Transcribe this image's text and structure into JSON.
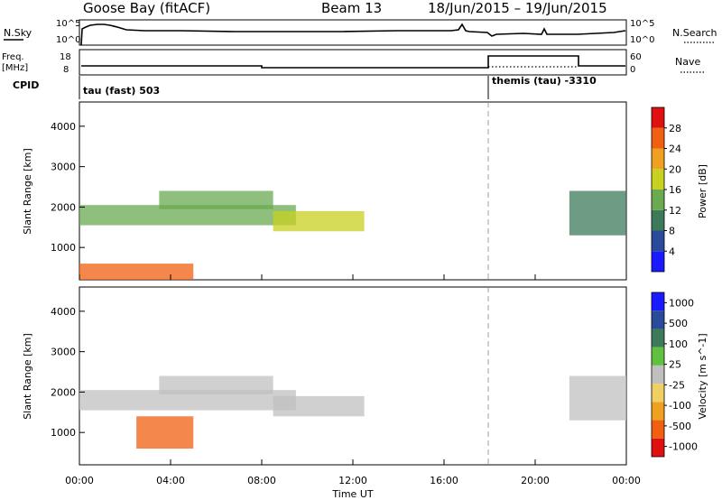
{
  "header": {
    "station": "Goose Bay (fitACF)",
    "beam": "Beam 13",
    "date_range": "18/Jun/2015 – 19/Jun/2015"
  },
  "noise_panel": {
    "left_label": "N.Sky",
    "right_label": "N.Search",
    "left_ticks": [
      "10^5",
      "10^0"
    ],
    "right_ticks": [
      "10^5",
      "10^0"
    ]
  },
  "freq_panel": {
    "left_label_1": "Freq.",
    "left_label_2": "[MHz]",
    "left_ticks": [
      "18",
      "8"
    ],
    "right_label": "Nave",
    "right_ticks": [
      "60",
      "0"
    ]
  },
  "cpid_panel": {
    "label": "CPID",
    "mode_1": "tau (fast) 503",
    "mode_2": "themis (tau) -3310"
  },
  "colors": {
    "power_scale": [
      "#1a1aff",
      "#2a4a9a",
      "#3d7a5a",
      "#6aaa50",
      "#c8d020",
      "#f0a020",
      "#f06010",
      "#e01010"
    ],
    "velocity_scale": [
      "#e01010",
      "#f06010",
      "#f0a020",
      "#f0d060",
      "#c0c0c0",
      "#60c040",
      "#3d7a5a",
      "#2a4a9a",
      "#1a1aff"
    ],
    "ground_scatter": "#c0c0c0"
  },
  "chart_data": [
    {
      "type": "heatmap",
      "title": "",
      "ylabel": "Slant Range [km]",
      "xlabel": "",
      "y_ticks": [
        "1000",
        "2000",
        "3000",
        "4000"
      ],
      "ylim": [
        200,
        4600
      ],
      "xlim": [
        "00:00",
        "24:00"
      ],
      "colorbar": {
        "label": "Power [dB]",
        "ticks": [
          "4",
          "8",
          "12",
          "16",
          "20",
          "24",
          "28"
        ],
        "range": [
          0,
          30
        ]
      },
      "features": [
        {
          "from_h": 0,
          "to_h": 9.5,
          "range_km": [
            1550,
            2050
          ],
          "value_db": 14
        },
        {
          "from_h": 3.5,
          "to_h": 8.5,
          "range_km": [
            1950,
            2400
          ],
          "value_db": 12
        },
        {
          "from_h": 8.5,
          "to_h": 12.5,
          "range_km": [
            1400,
            1900
          ],
          "value_db": 16
        },
        {
          "from_h": 0,
          "to_h": 5,
          "range_km": [
            200,
            600
          ],
          "value_db": 24
        },
        {
          "from_h": 21.5,
          "to_h": 24,
          "range_km": [
            1300,
            2400
          ],
          "value_db": 10
        }
      ]
    },
    {
      "type": "heatmap",
      "title": "",
      "ylabel": "Slant Range [km]",
      "xlabel": "Time UT",
      "y_ticks": [
        "1000",
        "2000",
        "3000",
        "4000"
      ],
      "x_ticks": [
        "00:00",
        "04:00",
        "08:00",
        "12:00",
        "16:00",
        "20:00",
        "00:00"
      ],
      "ylim": [
        200,
        4600
      ],
      "colorbar": {
        "label": "Velocity [m s^-1]",
        "ticks": [
          "1000",
          "500",
          "100",
          "25",
          "-25",
          "-100",
          "-500",
          "-1000"
        ]
      },
      "features": [
        {
          "from_h": 0,
          "to_h": 9.5,
          "range_km": [
            1550,
            2050
          ],
          "value": "ground scatter"
        },
        {
          "from_h": 3.5,
          "to_h": 8.5,
          "range_km": [
            1950,
            2400
          ],
          "value": "ground scatter"
        },
        {
          "from_h": 8.5,
          "to_h": 12.5,
          "range_km": [
            1400,
            1900
          ],
          "value": "ground scatter"
        },
        {
          "from_h": 2.5,
          "to_h": 5,
          "range_km": [
            600,
            1400
          ],
          "value_ms": -100
        },
        {
          "from_h": 21.5,
          "to_h": 24,
          "range_km": [
            1300,
            2400
          ],
          "value": "ground scatter"
        }
      ]
    }
  ]
}
